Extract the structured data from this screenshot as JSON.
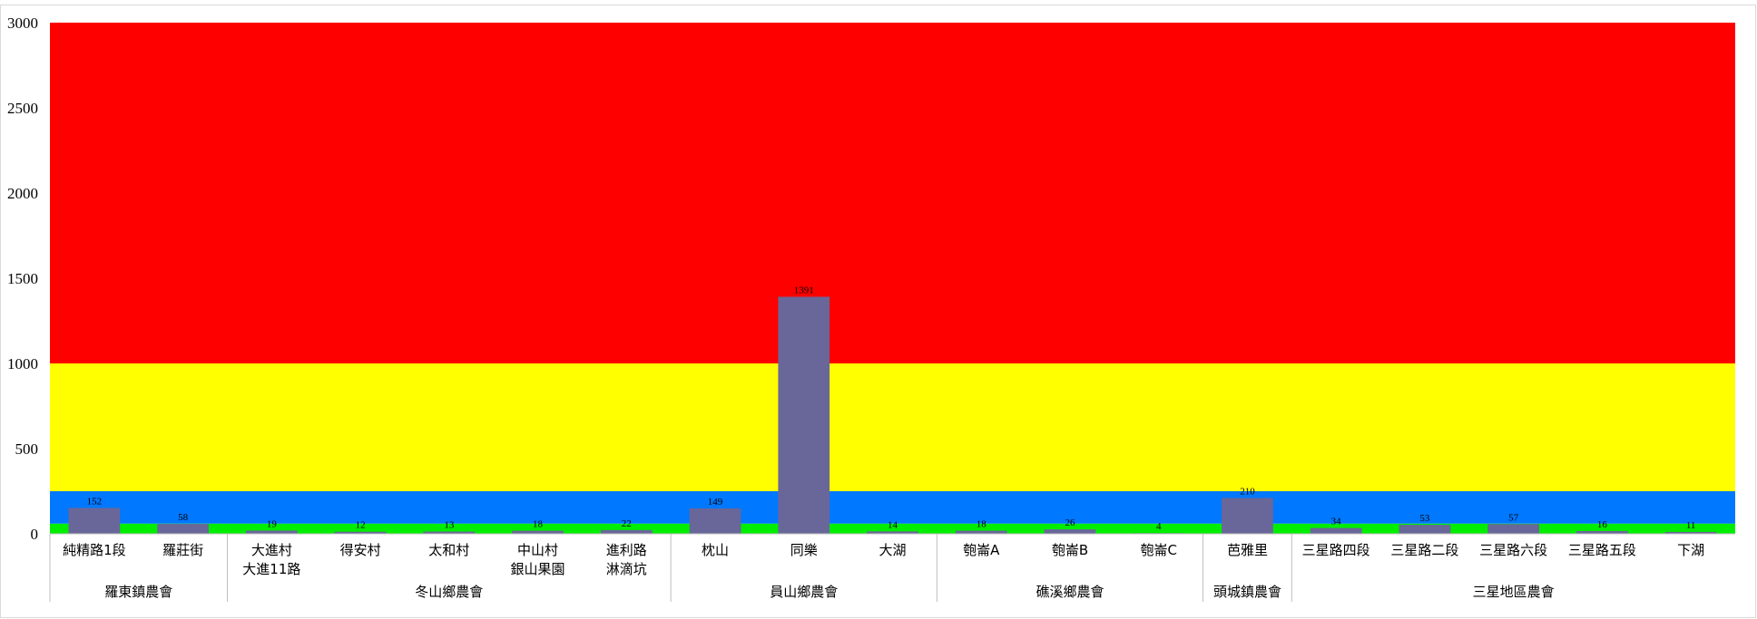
{
  "chart_data": {
    "type": "bar",
    "title": "",
    "xlabel": "",
    "ylabel": "",
    "ylim": [
      0,
      3000
    ],
    "yticks": [
      0,
      500,
      1000,
      1500,
      2000,
      2500,
      3000
    ],
    "grid": false,
    "colors": {
      "bar": "#696799",
      "band_green": "#00ee00",
      "band_blue": "#0078ff",
      "band_yellow": "#ffff00",
      "band_red": "#ff0000"
    },
    "bands": [
      {
        "from": 0,
        "to": 60,
        "color": "#00ee00"
      },
      {
        "from": 60,
        "to": 250,
        "color": "#0078ff"
      },
      {
        "from": 250,
        "to": 1000,
        "color": "#ffff00"
      },
      {
        "from": 1000,
        "to": 3000,
        "color": "#ff0000"
      }
    ],
    "groups": [
      {
        "name": "羅東鎮農會",
        "categories": [
          {
            "label": [
              "純精路1段"
            ],
            "value": 152
          },
          {
            "label": [
              "羅莊街"
            ],
            "value": 58
          }
        ]
      },
      {
        "name": "冬山鄉農會",
        "categories": [
          {
            "label": [
              "大進村",
              "大進11路"
            ],
            "value": 19
          },
          {
            "label": [
              "得安村"
            ],
            "value": 12
          },
          {
            "label": [
              "太和村"
            ],
            "value": 13
          },
          {
            "label": [
              "中山村",
              "銀山果園"
            ],
            "value": 18
          },
          {
            "label": [
              "進利路",
              "淋滴坑"
            ],
            "value": 22
          }
        ]
      },
      {
        "name": "員山鄉農會",
        "categories": [
          {
            "label": [
              "枕山"
            ],
            "value": 149
          },
          {
            "label": [
              "同樂"
            ],
            "value": 1391
          },
          {
            "label": [
              "大湖"
            ],
            "value": 14
          }
        ]
      },
      {
        "name": "礁溪鄉農會",
        "categories": [
          {
            "label": [
              "匏崙A"
            ],
            "value": 18
          },
          {
            "label": [
              "匏崙B"
            ],
            "value": 26
          },
          {
            "label": [
              "匏崙C"
            ],
            "value": 4
          }
        ]
      },
      {
        "name": "頭城鎮農會",
        "categories": [
          {
            "label": [
              "芭雅里"
            ],
            "value": 210
          }
        ]
      },
      {
        "name": "三星地區農會",
        "categories": [
          {
            "label": [
              "三星路四段"
            ],
            "value": 34
          },
          {
            "label": [
              "三星路二段"
            ],
            "value": 53
          },
          {
            "label": [
              "三星路六段"
            ],
            "value": 57
          },
          {
            "label": [
              "三星路五段"
            ],
            "value": 16
          },
          {
            "label": [
              "下湖"
            ],
            "value": 11
          }
        ]
      }
    ]
  }
}
